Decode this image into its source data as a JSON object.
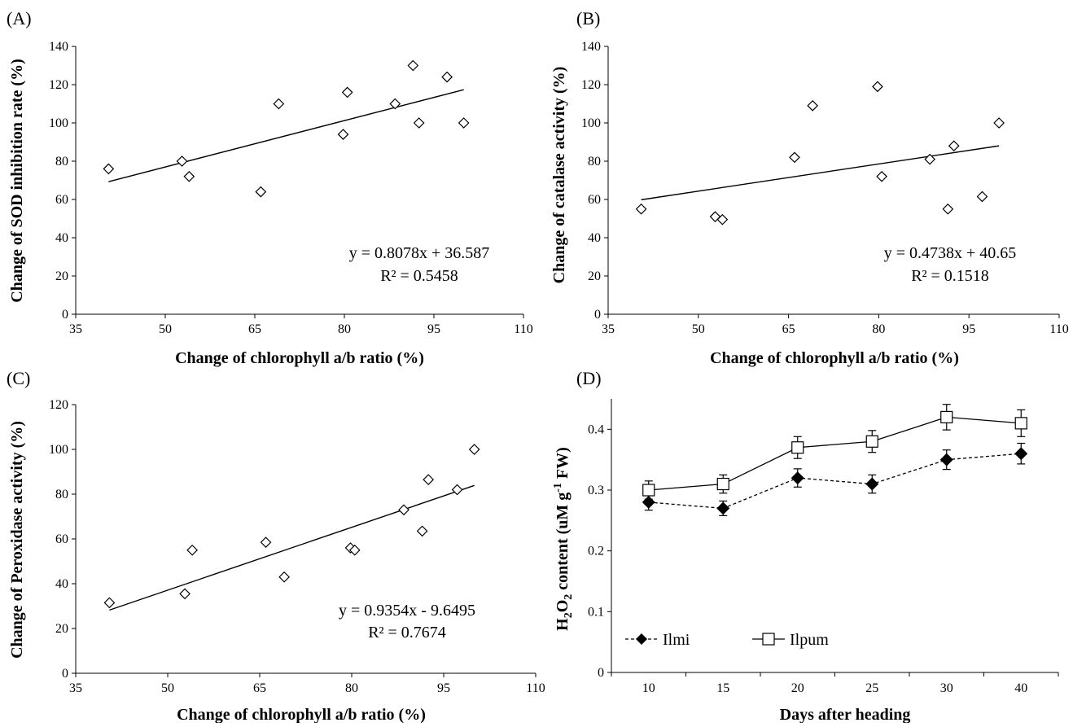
{
  "chart_data": [
    {
      "panel": "(A)",
      "type": "scatter",
      "xlabel": "Change of chlorophyll a/b ratio (%)",
      "ylabel": "Change of SOD inhibition rate (%)",
      "xlim": [
        35,
        110
      ],
      "ylim": [
        0,
        140
      ],
      "xticks": [
        35,
        50,
        65,
        80,
        95,
        110
      ],
      "yticks": [
        0,
        20,
        40,
        60,
        80,
        100,
        120,
        140
      ],
      "points": [
        [
          40.5,
          76
        ],
        [
          52.8,
          80
        ],
        [
          54.0,
          72
        ],
        [
          66.0,
          64
        ],
        [
          69.0,
          110
        ],
        [
          79.8,
          94
        ],
        [
          80.5,
          116
        ],
        [
          88.5,
          110
        ],
        [
          91.5,
          130
        ],
        [
          92.5,
          100
        ],
        [
          97.2,
          124
        ],
        [
          100,
          100
        ]
      ],
      "trendline": {
        "slope": 0.8078,
        "intercept": 36.587,
        "x_range": [
          40.5,
          100
        ]
      },
      "equation": "y = 0.8078x + 36.587",
      "r2": "R² = 0.5458",
      "marker": "diamond-open",
      "grid": false
    },
    {
      "panel": "(B)",
      "type": "scatter",
      "xlabel": "Change of chlorophyll a/b ratio (%)",
      "ylabel": "Change of catalase activity (%)",
      "xlim": [
        35,
        110
      ],
      "ylim": [
        0,
        140
      ],
      "xticks": [
        35,
        50,
        65,
        80,
        95,
        110
      ],
      "yticks": [
        0,
        20,
        40,
        60,
        80,
        100,
        120,
        140
      ],
      "points": [
        [
          40.5,
          55
        ],
        [
          52.8,
          51
        ],
        [
          54.0,
          49.5
        ],
        [
          66.0,
          82
        ],
        [
          69.0,
          109
        ],
        [
          79.8,
          119
        ],
        [
          80.5,
          72
        ],
        [
          88.5,
          81
        ],
        [
          91.5,
          55
        ],
        [
          92.5,
          88
        ],
        [
          97.2,
          61.5
        ],
        [
          100,
          100
        ]
      ],
      "trendline": {
        "slope": 0.4738,
        "intercept": 40.65,
        "x_range": [
          40.5,
          100
        ]
      },
      "equation": "y = 0.4738x + 40.65",
      "r2": "R² = 0.1518",
      "marker": "diamond-open",
      "grid": false
    },
    {
      "panel": "(C)",
      "type": "scatter",
      "xlabel": "Change of chlorophyll a/b ratio (%)",
      "ylabel": "Change of  Peroxidase activity (%)",
      "xlim": [
        35,
        110
      ],
      "ylim": [
        0,
        120
      ],
      "xticks": [
        35,
        50,
        65,
        80,
        95,
        110
      ],
      "yticks": [
        0,
        20,
        40,
        60,
        80,
        100,
        120
      ],
      "points": [
        [
          40.5,
          31.5
        ],
        [
          52.8,
          35.5
        ],
        [
          54.0,
          55
        ],
        [
          66.0,
          58.5
        ],
        [
          69.0,
          43
        ],
        [
          79.8,
          56
        ],
        [
          80.5,
          55
        ],
        [
          88.5,
          73
        ],
        [
          91.5,
          63.5
        ],
        [
          92.5,
          86.5
        ],
        [
          97.2,
          82
        ],
        [
          100,
          100
        ]
      ],
      "trendline": {
        "slope": 0.9354,
        "intercept": -9.6495,
        "x_range": [
          40.5,
          100
        ]
      },
      "equation": "y = 0.9354x - 9.6495",
      "r2": "R² = 0.7674",
      "marker": "diamond-open",
      "grid": false
    },
    {
      "panel": "(D)",
      "type": "line",
      "xlabel": "Days after heading",
      "ylabel_main": "H",
      "ylabel_sub": "2",
      "ylabel_mid": "O",
      "ylabel_sub2": "2",
      "ylabel_rest": " content (uM g",
      "ylabel_sup": "-1",
      "ylabel_end": " FW)",
      "categories": [
        "10",
        "15",
        "20",
        "25",
        "30",
        "40"
      ],
      "ylim": [
        0,
        0.45
      ],
      "yticks": [
        "0",
        "0.1",
        "0.2",
        "0.3",
        "0.4"
      ],
      "series": [
        {
          "name": "Ilmi",
          "values": [
            0.28,
            0.27,
            0.32,
            0.31,
            0.35,
            0.36
          ],
          "errors": [
            0.013,
            0.012,
            0.015,
            0.015,
            0.016,
            0.017
          ],
          "marker": "diamond-filled",
          "line": "dashed"
        },
        {
          "name": "Ilpum",
          "values": [
            0.3,
            0.31,
            0.37,
            0.38,
            0.42,
            0.41
          ],
          "errors": [
            0.015,
            0.015,
            0.018,
            0.018,
            0.021,
            0.022
          ],
          "marker": "square-open",
          "line": "solid"
        }
      ],
      "legend_position": "bottom-left",
      "grid": false
    }
  ]
}
